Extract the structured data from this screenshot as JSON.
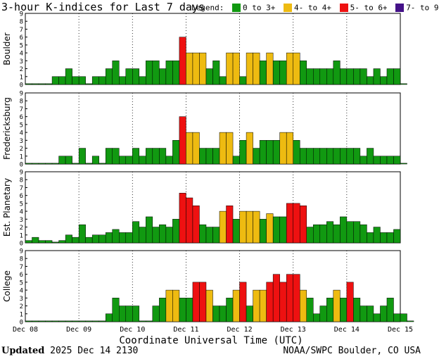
{
  "title": "3-hour K-indices for Last 7 days",
  "legend": {
    "label": "Legend:",
    "items": [
      {
        "label": "0 to 3+",
        "color": "#119911"
      },
      {
        "label": "4- to 4+",
        "color": "#EEBB11"
      },
      {
        "label": "5- to 6+",
        "color": "#EE1111"
      },
      {
        "label": "7- to 9",
        "color": "#441188"
      }
    ]
  },
  "footer": {
    "updated_label": "Updated",
    "updated_value": "2025 Dec 14 2130",
    "credit": "NOAA/SWPC Boulder, CO USA"
  },
  "chart_data": {
    "type": "bar",
    "xlabel": "Coordinate Universal Time (UTC)",
    "x_ticks": [
      "Dec 08",
      "Dec 09",
      "Dec 10",
      "Dec 11",
      "Dec 12",
      "Dec 13",
      "Dec 14",
      "Dec 15"
    ],
    "ylim": [
      0,
      9
    ],
    "y_ticks": [
      0,
      1,
      2,
      3,
      4,
      5,
      6,
      7,
      8,
      9
    ],
    "bins_per_day": 8,
    "series": [
      {
        "name": "Boulder",
        "values": [
          0.1,
          0.1,
          0.1,
          0.1,
          1,
          1,
          2,
          1,
          1,
          0.1,
          1,
          1,
          2,
          3,
          1,
          2,
          2,
          1,
          3,
          3,
          2,
          3,
          3,
          6,
          4,
          4,
          4,
          2,
          3,
          1,
          4,
          4,
          1,
          4,
          4,
          3,
          4,
          3,
          3,
          4,
          4,
          3,
          2,
          2,
          2,
          2,
          3,
          2,
          2,
          2,
          2,
          1,
          2,
          1,
          2,
          2,
          0.1
        ]
      },
      {
        "name": "Fredericksburg",
        "values": [
          0.1,
          0.1,
          0.1,
          0.1,
          0.1,
          1,
          1,
          0.1,
          2,
          0.1,
          1,
          0.1,
          2,
          2,
          1,
          1,
          2,
          1,
          2,
          2,
          2,
          1,
          3,
          6,
          4,
          4,
          2,
          2,
          2,
          4,
          4,
          1,
          3,
          4,
          2,
          3,
          3,
          3,
          4,
          4,
          3,
          2,
          2,
          2,
          2,
          2,
          2,
          2,
          2,
          2,
          1,
          2,
          1,
          1,
          1,
          1,
          0.1
        ]
      },
      {
        "name": "Est. Planetary",
        "values": [
          0.3,
          0.7,
          0.3,
          0.3,
          0.1,
          0.3,
          1,
          0.7,
          2.3,
          0.7,
          1,
          1,
          1.3,
          1.7,
          1.3,
          1.3,
          2.7,
          2,
          3.3,
          2,
          2.3,
          2,
          3,
          6.3,
          5.7,
          4.7,
          2.3,
          2,
          2,
          4,
          4.7,
          3,
          4,
          4,
          4,
          3,
          3.7,
          3.3,
          3.3,
          5,
          5,
          4.7,
          2,
          2.3,
          2.3,
          2.7,
          2.3,
          3.3,
          2.7,
          2.7,
          2.3,
          1.3,
          2,
          1.3,
          1.3,
          1.7
        ]
      },
      {
        "name": "College",
        "values": [
          0.1,
          0.1,
          0.1,
          0.1,
          0.1,
          0.1,
          0.1,
          0.1,
          0.1,
          0.1,
          0.1,
          0.1,
          1,
          3,
          2,
          2,
          2,
          0.1,
          0.1,
          2,
          3,
          4,
          4,
          3,
          3,
          5,
          5,
          4,
          2,
          2,
          3,
          4,
          5,
          2,
          4,
          4,
          5,
          6,
          5,
          6,
          6,
          4,
          3,
          1,
          2,
          3,
          4,
          3,
          5,
          3,
          2,
          2,
          1,
          2,
          3,
          1,
          1,
          0.1
        ]
      }
    ]
  }
}
